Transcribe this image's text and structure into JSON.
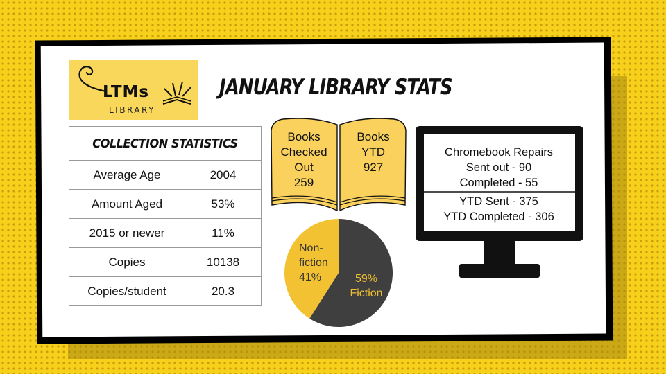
{
  "logo": {
    "main": "LTMs",
    "sub": "LIBRARY",
    "icon": "book-icon"
  },
  "title": "JANUARY LIBRARY STATS",
  "collection": {
    "header": "COLLECTION STATISTICS",
    "rows": [
      {
        "label": "Average Age",
        "value": "2004"
      },
      {
        "label": "Amount Aged",
        "value": "53%"
      },
      {
        "label": "2015 or newer",
        "value": "11%"
      },
      {
        "label": "Copies",
        "value": "10138"
      },
      {
        "label": "Copies/student",
        "value": "20.3"
      }
    ]
  },
  "books": {
    "left_lines": [
      "Books",
      "Checked",
      "Out",
      "259"
    ],
    "right_lines": [
      "Books",
      "YTD",
      "927"
    ]
  },
  "chart_data": {
    "type": "pie",
    "slices": [
      {
        "label": "Fiction",
        "value": 59,
        "color": "#3f3f3f"
      },
      {
        "label": "Non-fiction",
        "value": 41,
        "color": "#f2c232"
      }
    ],
    "label_lines": {
      "fiction": [
        "59%",
        "Fiction"
      ],
      "nonfiction": [
        "Non-",
        "fiction",
        "41%"
      ]
    }
  },
  "chromebook": {
    "top_lines": [
      "Chromebook Repairs",
      "Sent out - 90",
      "Completed - 55"
    ],
    "bottom_lines": [
      "YTD Sent - 375",
      "YTD Completed - 306"
    ]
  },
  "colors": {
    "accent_yellow": "#f7d01c",
    "book_yellow": "#f9d15c",
    "pie_dark": "#3f3f3f",
    "pie_yellow": "#f2c232"
  }
}
